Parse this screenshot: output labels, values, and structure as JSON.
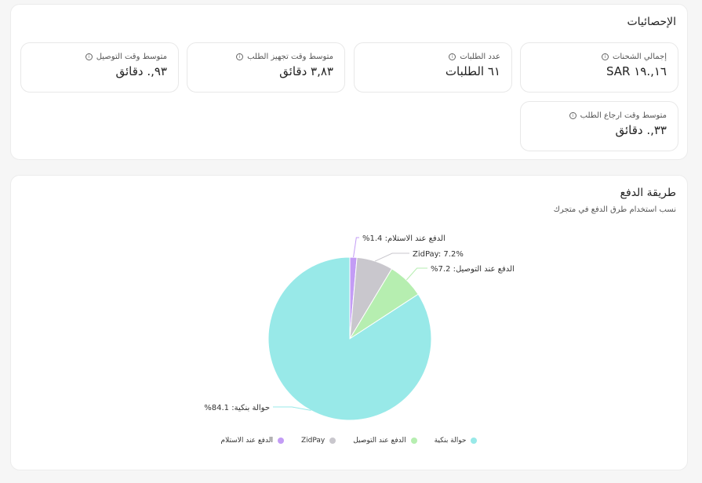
{
  "stats": {
    "title": "الإحصائيات",
    "items": [
      {
        "label": "إجمالي الشحنات",
        "value": "١٦,.١٩ SAR"
      },
      {
        "label": "عدد الطلبات",
        "value": "٦١ الطلبات"
      },
      {
        "label": "متوسط وقت تجهيز الطلب",
        "value": "٣,٨٣ دقائق"
      },
      {
        "label": "متوسط وقت التوصيل",
        "value": "٩٣,. دقائق"
      },
      {
        "label": "متوسط وقت ارجاع الطلب",
        "value": "٣٣,. دقائق"
      }
    ]
  },
  "payment": {
    "title": "طريقة الدفع",
    "subtitle": "نسب استخدام طرق الدفع في متجرك",
    "chart_data": {
      "type": "pie",
      "slices": [
        {
          "name": "الدفع عند الاستلام",
          "value": 1.4,
          "color": "#c39cf5",
          "label": "%الدفع عند الاستلام: 1.4"
        },
        {
          "name": "ZidPay",
          "value": 7.2,
          "color": "#c9c7cd",
          "label": "ZidPay: 7.2%"
        },
        {
          "name": "الدفع عند التوصيل",
          "value": 7.2,
          "color": "#b6eeb0",
          "label": "%الدفع عند التوصيل: 7.2"
        },
        {
          "name": "حوالة بنكية",
          "value": 84.1,
          "color": "#98e9e8",
          "label": "%حوالة بنكية: 84.1"
        }
      ],
      "legend_placement": "bottom"
    }
  }
}
